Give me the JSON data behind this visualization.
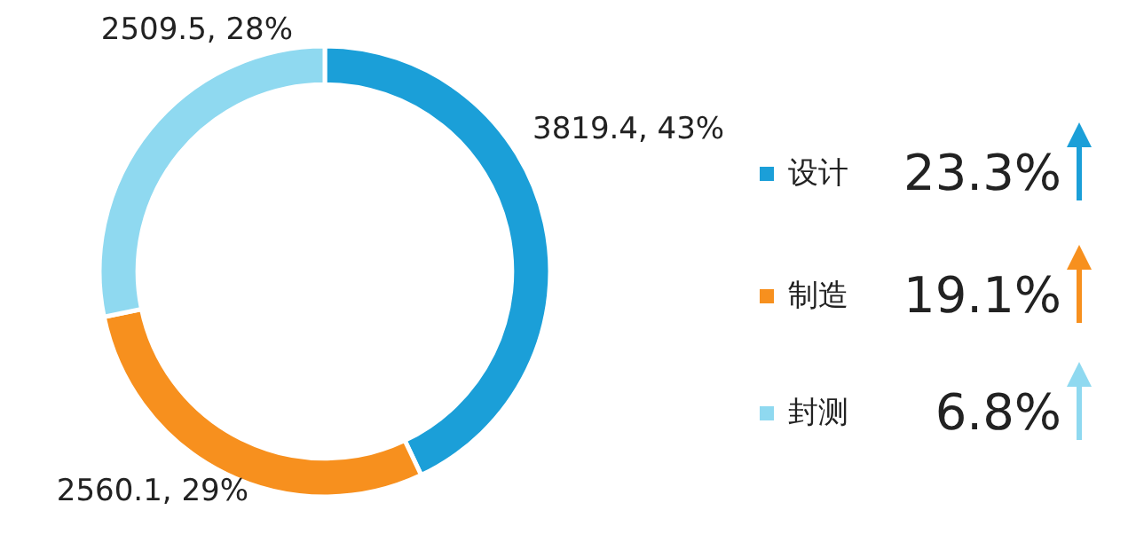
{
  "chart_data": {
    "type": "donut",
    "categories": [
      "设计",
      "制造",
      "封测"
    ],
    "values": [
      3819.4,
      2560.1,
      2509.5
    ],
    "colors": [
      "#1b9fd8",
      "#f7901e",
      "#8fd9f0"
    ],
    "value_labels": [
      "3819.4, 43%",
      "2560.1, 29%",
      "2509.5, 28%"
    ],
    "annotations": [
      "23.3%",
      "19.1%",
      "6.8%"
    ],
    "legend": "right"
  }
}
